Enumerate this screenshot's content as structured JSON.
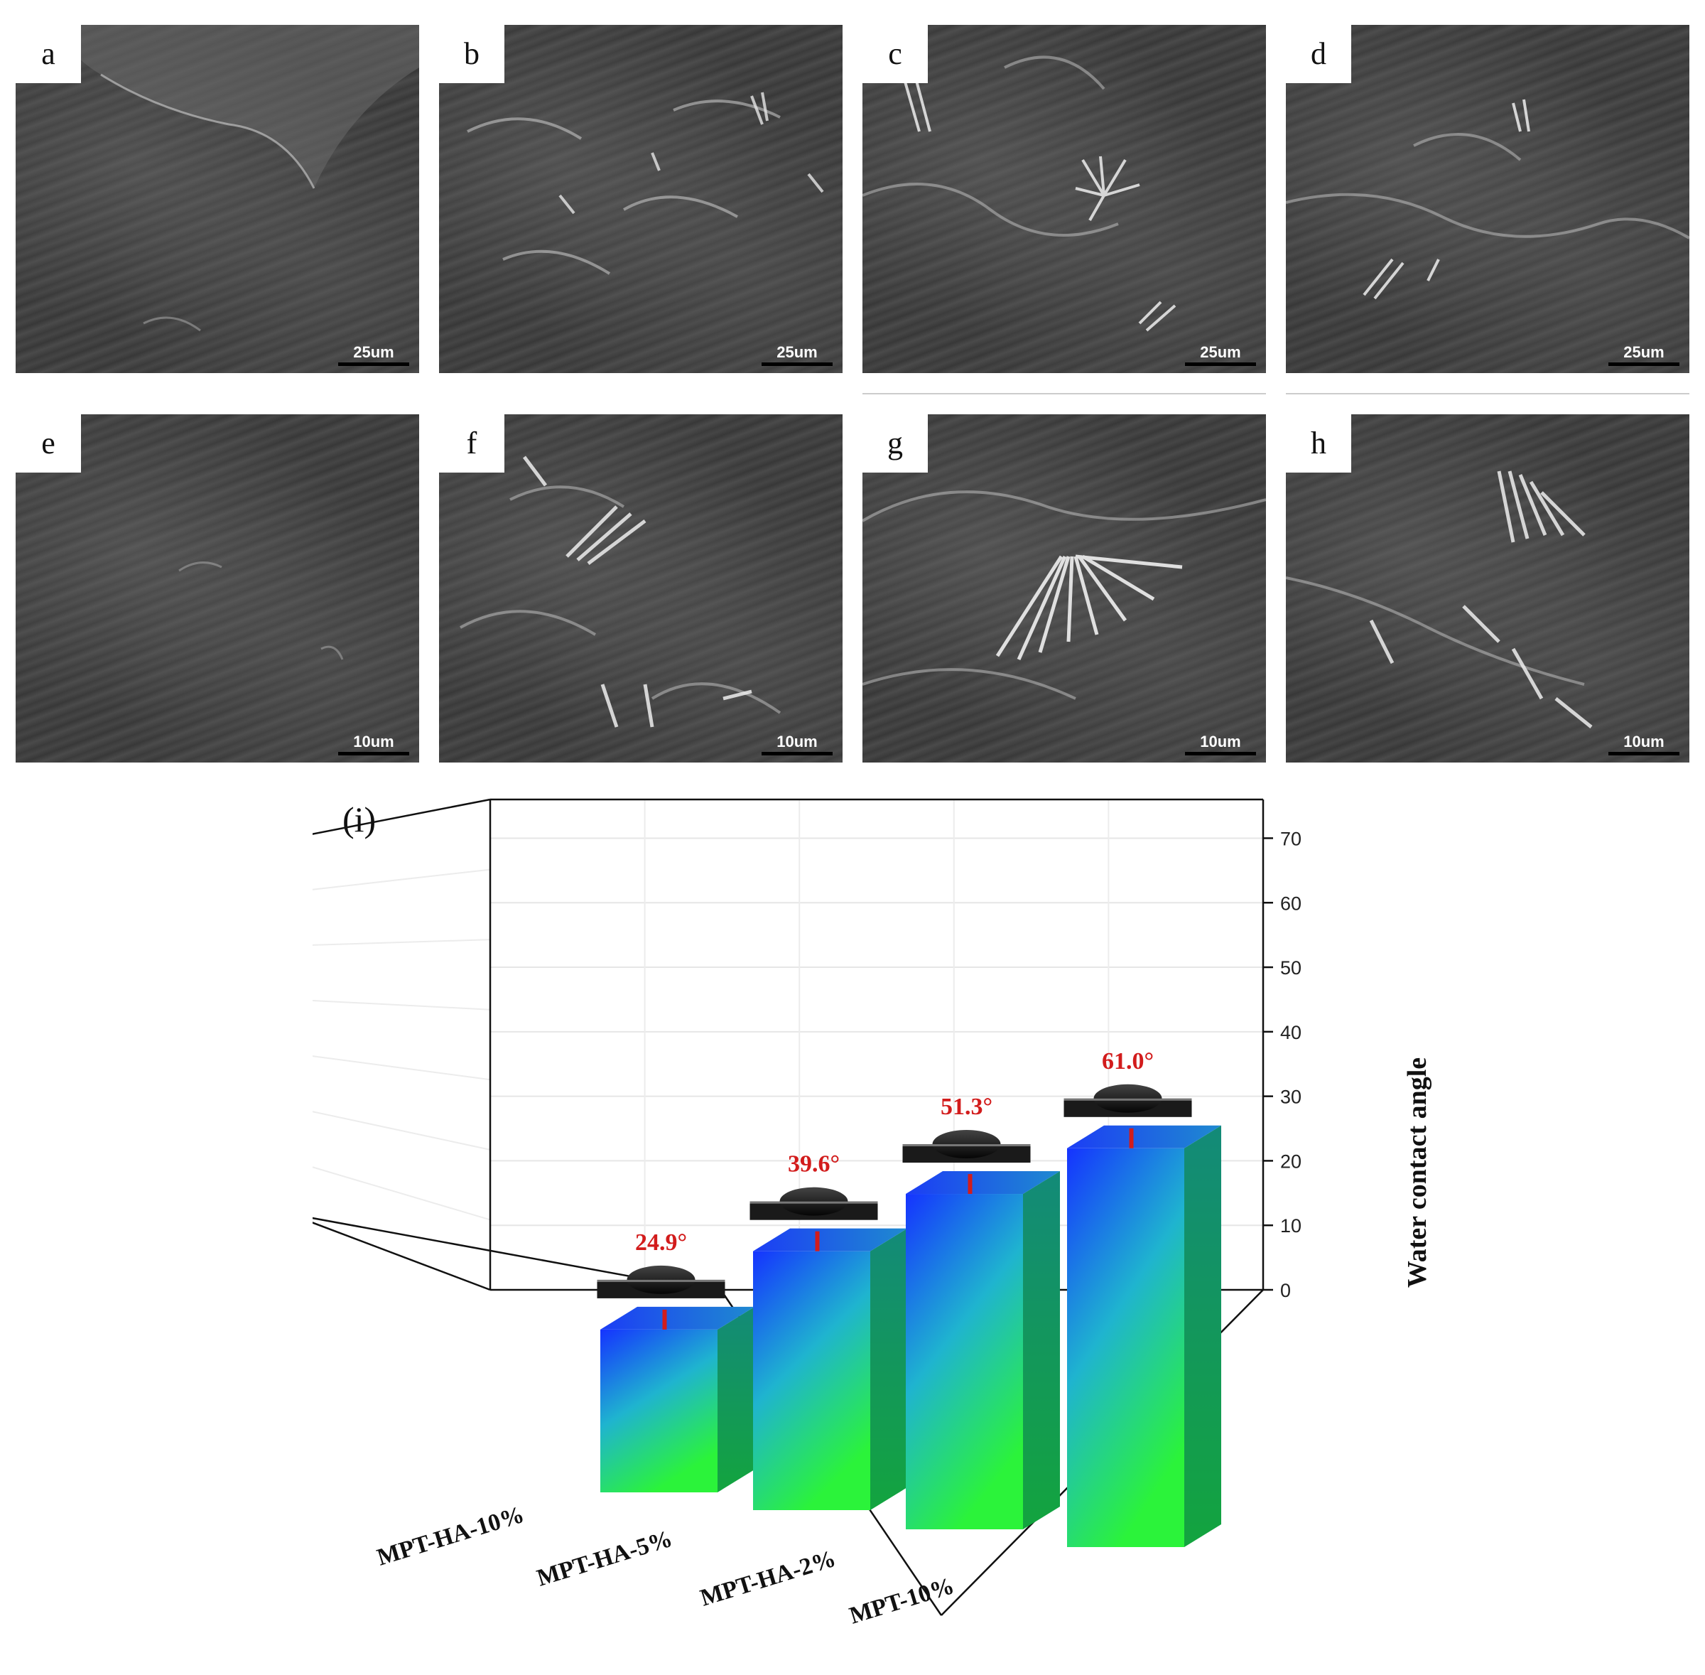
{
  "panels": [
    {
      "label": "a",
      "scale": "25um"
    },
    {
      "label": "b",
      "scale": "25um"
    },
    {
      "label": "c",
      "scale": "25um"
    },
    {
      "label": "d",
      "scale": "25um"
    },
    {
      "label": "e",
      "scale": "10um"
    },
    {
      "label": "f",
      "scale": "10um"
    },
    {
      "label": "g",
      "scale": "10um"
    },
    {
      "label": "h",
      "scale": "10um"
    }
  ],
  "chart_data": {
    "type": "bar",
    "panel_label": "(i)",
    "categories": [
      "MPT-HA-10%",
      "MPT-HA-5%",
      "MPT-HA-2%",
      "MPT-10%"
    ],
    "values": [
      24.9,
      39.6,
      51.3,
      61.0
    ],
    "value_labels": [
      "24.9°",
      "39.6°",
      "51.3°",
      "61.0°"
    ],
    "zlabel": "Water contact angle",
    "zticks": [
      0,
      10,
      20,
      30,
      40,
      50,
      60,
      70
    ],
    "zlim": [
      0,
      70
    ],
    "style": "3d-bars",
    "grid": true,
    "colors": {
      "bar_top": "#1a3cff",
      "bar_bottom": "#27f03a",
      "bar_side": "#1a9a52",
      "value_text": "#d21c1c"
    }
  }
}
